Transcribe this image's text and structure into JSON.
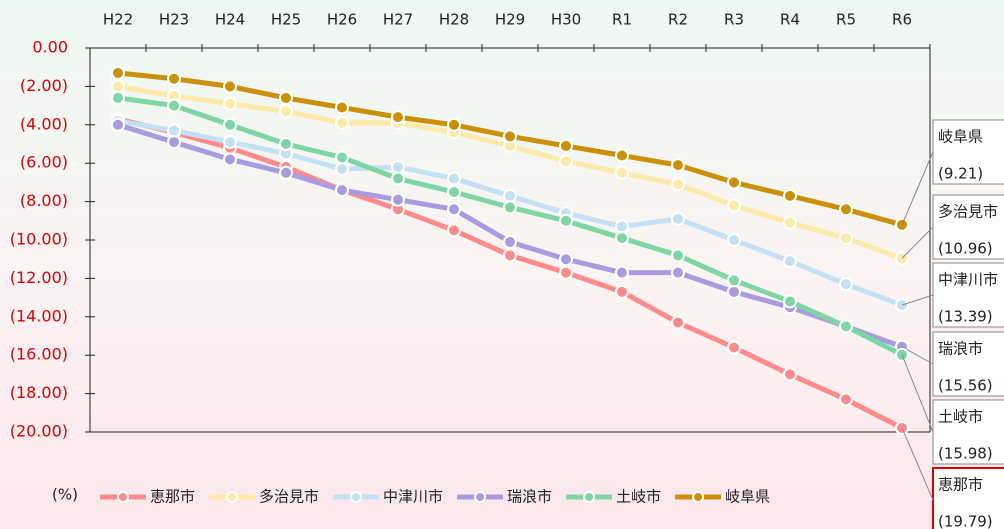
{
  "chart_data": {
    "type": "line",
    "categories": [
      "H22",
      "H23",
      "H24",
      "H25",
      "H26",
      "H27",
      "H28",
      "H29",
      "H30",
      "R1",
      "R2",
      "R3",
      "R4",
      "R5",
      "R6"
    ],
    "y_label": "(%)",
    "ylim": [
      -20,
      0
    ],
    "yticks": [
      {
        "value": 0,
        "label": "0.00"
      },
      {
        "value": -2,
        "label": "(2.00)"
      },
      {
        "value": -4,
        "label": "(4.00)"
      },
      {
        "value": -6,
        "label": "(6.00)"
      },
      {
        "value": -8,
        "label": "(8.00)"
      },
      {
        "value": -10,
        "label": "(10.00)"
      },
      {
        "value": -12,
        "label": "(12.00)"
      },
      {
        "value": -14,
        "label": "(14.00)"
      },
      {
        "value": -16,
        "label": "(16.00)"
      },
      {
        "value": -18,
        "label": "(18.00)"
      },
      {
        "value": -20,
        "label": "(20.00)"
      }
    ],
    "series": [
      {
        "name": "恵那市",
        "color": "#ff8a8a",
        "values": [
          -3.7,
          -4.4,
          -5.2,
          -6.2,
          -7.4,
          -8.4,
          -9.5,
          -10.8,
          -11.7,
          -12.7,
          -14.3,
          -15.6,
          -17.0,
          -18.3,
          -19.79
        ],
        "value_labels": [
          null,
          null,
          null,
          null,
          null,
          null,
          null,
          null,
          null,
          null,
          null,
          null,
          null,
          null,
          "(19.79)"
        ]
      },
      {
        "name": "多治見市",
        "color": "#fde9a8",
        "values": [
          -2.0,
          -2.5,
          -2.9,
          -3.3,
          -3.9,
          -3.9,
          -4.4,
          -5.1,
          -5.9,
          -6.5,
          -7.1,
          -8.2,
          -9.1,
          -9.9,
          -10.96
        ],
        "value_labels": [
          null,
          null,
          null,
          null,
          null,
          null,
          null,
          null,
          null,
          null,
          null,
          null,
          null,
          null,
          "(10.96)"
        ]
      },
      {
        "name": "中津川市",
        "color": "#c5e0f5",
        "values": [
          -3.8,
          -4.3,
          -4.9,
          -5.5,
          -6.3,
          -6.2,
          -6.8,
          -7.7,
          -8.6,
          -9.3,
          -8.9,
          -10.0,
          -11.1,
          -12.3,
          -13.39
        ],
        "value_labels": [
          null,
          null,
          null,
          null,
          null,
          null,
          null,
          null,
          null,
          null,
          null,
          null,
          null,
          null,
          "(13.39)"
        ]
      },
      {
        "name": "瑞浪市",
        "color": "#a99be0",
        "values": [
          -4.0,
          -4.9,
          -5.8,
          -6.5,
          -7.4,
          -7.9,
          -8.4,
          -10.1,
          -11.0,
          -11.7,
          -11.7,
          -12.7,
          -13.5,
          -14.5,
          -15.56
        ],
        "value_labels": [
          null,
          null,
          null,
          null,
          null,
          null,
          null,
          null,
          null,
          null,
          null,
          null,
          null,
          null,
          "(15.56)"
        ]
      },
      {
        "name": "土岐市",
        "color": "#7ed6a4",
        "values": [
          -2.6,
          -3.0,
          -4.0,
          -5.0,
          -5.7,
          -6.8,
          -7.5,
          -8.3,
          -9.0,
          -9.9,
          -10.8,
          -12.1,
          -13.2,
          -14.5,
          -15.98
        ],
        "value_labels": [
          null,
          null,
          null,
          null,
          null,
          null,
          null,
          null,
          null,
          null,
          null,
          null,
          null,
          null,
          "(15.98)"
        ]
      },
      {
        "name": "岐阜県",
        "color": "#cc9008",
        "values": [
          -1.3,
          -1.6,
          -2.0,
          -2.6,
          -3.1,
          -3.6,
          -4.0,
          -4.6,
          -5.1,
          -5.6,
          -6.1,
          -7.0,
          -7.7,
          -8.4,
          -9.21
        ],
        "value_labels": [
          null,
          null,
          null,
          null,
          null,
          null,
          null,
          null,
          null,
          null,
          null,
          null,
          null,
          null,
          "(9.21)"
        ]
      }
    ]
  }
}
